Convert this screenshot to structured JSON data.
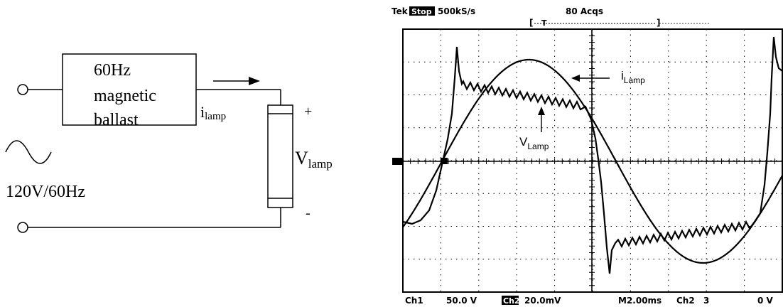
{
  "circuit": {
    "ballast_line1": "60Hz",
    "ballast_line2": "magnetic",
    "ballast_line3": "ballast",
    "current_label_main": "i",
    "current_label_sub": "lamp",
    "voltage_label_main": "V",
    "voltage_label_sub": "lamp",
    "plus_sign": "+",
    "minus_sign": "-",
    "source_label": "120V/60Hz"
  },
  "scope": {
    "header_brand": "Tek",
    "header_mode": "Stop",
    "header_rate": "500kS/s",
    "header_acqs": "80 Acqs",
    "trigger_mark": "T",
    "ch1_label": "Ch1",
    "ch1_scale": "50.0 V",
    "ch2_label": "Ch2",
    "ch2_scale": "20.0mV",
    "timebase": "M2.00ms",
    "trig_source": "Ch2",
    "trig_level": "0 V",
    "marker_ch": "3",
    "annotation_current_main": "i",
    "annotation_current_sub": "Lamp",
    "annotation_voltage_main": "V",
    "annotation_voltage_sub": "Lamp"
  }
}
